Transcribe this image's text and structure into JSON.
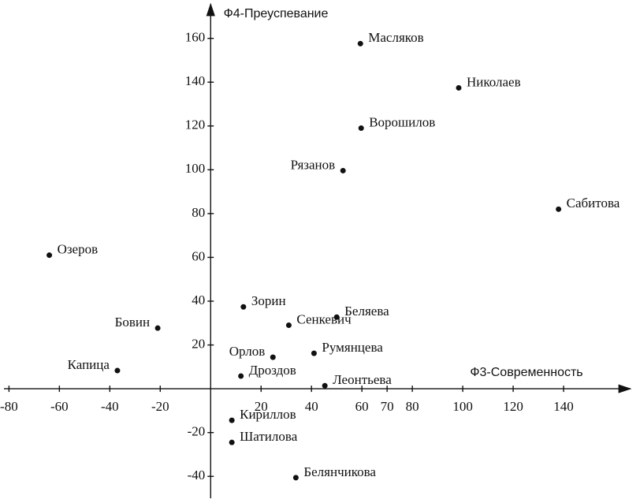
{
  "chart_data": {
    "type": "scatter",
    "x_label": "Ф3-Современность",
    "y_label": "Ф4-Преуспевание",
    "xlim": [
      -82,
      165
    ],
    "ylim": [
      -50,
      175
    ],
    "xticks": [
      -80,
      -60,
      -40,
      -20,
      20,
      40,
      60,
      70,
      80,
      100,
      120,
      140
    ],
    "yticks": [
      -40,
      -20,
      20,
      40,
      60,
      80,
      100,
      120,
      140,
      160
    ],
    "color": "#111111",
    "labels": [
      "Масляков",
      "Николаев",
      "Ворошилов",
      "Рязанов",
      "Сабитова",
      "Озеров",
      "Бовин",
      "Капица",
      "Зорин",
      "Беляева",
      "Сенкевич",
      "Орлов",
      "Румянцева",
      "Дроздов",
      "Леонтьева",
      "Кириллов",
      "Шатилова",
      "Белянчикова"
    ],
    "x": [
      59.4,
      98.4,
      59.7,
      52.5,
      138,
      -64,
      -21,
      -37,
      13,
      50,
      31,
      24.7,
      41,
      12,
      45.3,
      8.4,
      8.4,
      33.8
    ],
    "values": [
      157.6,
      137.4,
      119,
      99.6,
      82,
      61,
      27.7,
      8.3,
      37.4,
      32.7,
      29,
      14.4,
      16.2,
      5.8,
      1.4,
      -14.4,
      -24.5,
      -40.6
    ]
  }
}
